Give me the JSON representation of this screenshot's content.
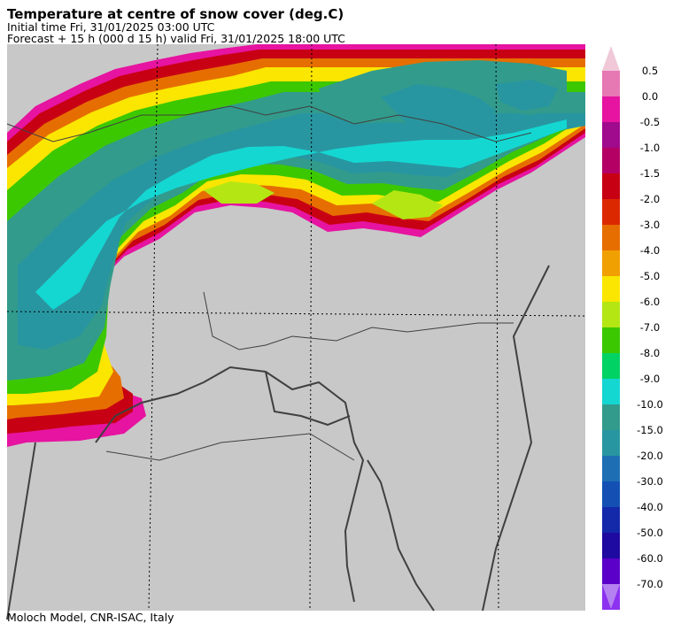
{
  "header": {
    "title": "Temperature at centre of snow cover (deg.C)",
    "initial_time": "Initial time  Fri, 31/01/2025  03:00 UTC",
    "forecast": "Forecast  +  15 h  (000 d 15 h)  valid Fri, 31/01/2025 18:00 UTC"
  },
  "footer": {
    "credit": "Moloch Model, CNR-ISAC, Italy"
  },
  "map": {
    "background_color": "#c8c8c8",
    "border_color": "#404040"
  },
  "legend": {
    "top_arrow_color": "#f0c8d8",
    "bottom_arrow_color": "#b482f0",
    "bins": [
      {
        "label": "0.5",
        "color": "#e678b4"
      },
      {
        "label": "0.0",
        "color": "#e614a0"
      },
      {
        "label": "-0.5",
        "color": "#a00a8c"
      },
      {
        "label": "-1.0",
        "color": "#b40064"
      },
      {
        "label": "-1.5",
        "color": "#c80014"
      },
      {
        "label": "-2.0",
        "color": "#dc2800"
      },
      {
        "label": "-3.0",
        "color": "#e66e00"
      },
      {
        "label": "-4.0",
        "color": "#f0a000"
      },
      {
        "label": "-5.0",
        "color": "#fae600"
      },
      {
        "label": "-6.0",
        "color": "#b4e614"
      },
      {
        "label": "-7.0",
        "color": "#3cc800"
      },
      {
        "label": "-8.0",
        "color": "#00d264"
      },
      {
        "label": "-9.0",
        "color": "#14d7d2"
      },
      {
        "label": "-10.0",
        "color": "#329b8c"
      },
      {
        "label": "-15.0",
        "color": "#2896a0"
      },
      {
        "label": "-20.0",
        "color": "#1e6eb4"
      },
      {
        "label": "-30.0",
        "color": "#1450b4"
      },
      {
        "label": "-40.0",
        "color": "#1428aa"
      },
      {
        "label": "-50.0",
        "color": "#1e0aa0"
      },
      {
        "label": "-60.0",
        "color": "#5a00c8"
      },
      {
        "label": "-70.0",
        "color": "#8c32f0"
      }
    ]
  }
}
